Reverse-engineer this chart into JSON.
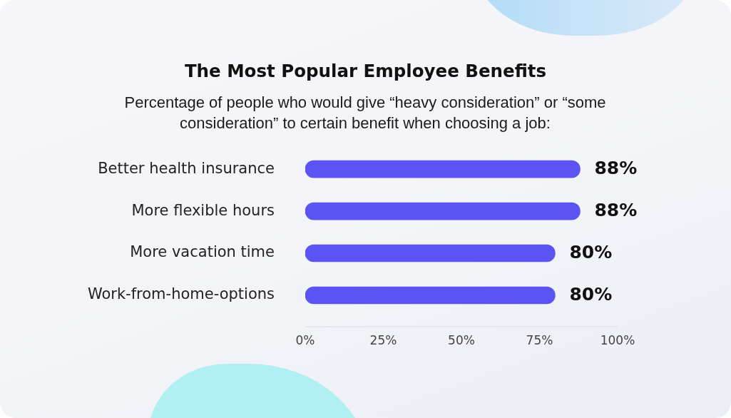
{
  "chart_data": {
    "type": "bar",
    "orientation": "horizontal",
    "title": "The Most Popular Employee Benefits",
    "subtitle": "Percentage of people who would give “heavy consideration” or “some consideration” to certain benefit when choosing a job:",
    "categories": [
      "Better health insurance",
      "More flexible hours",
      "More vacation time",
      "Work-from-home-options"
    ],
    "values": [
      88,
      88,
      80,
      80
    ],
    "color": "#5b54f2",
    "value_labels": [
      "88%",
      "88%",
      "80%",
      "80%"
    ],
    "xlim": [
      0,
      100
    ],
    "xticks": [
      {
        "value": 0,
        "label": "0%"
      },
      {
        "value": 25,
        "label": "25%"
      },
      {
        "value": 50,
        "label": "50%"
      },
      {
        "value": 75,
        "label": "75%"
      },
      {
        "value": 100,
        "label": "100%"
      }
    ]
  }
}
